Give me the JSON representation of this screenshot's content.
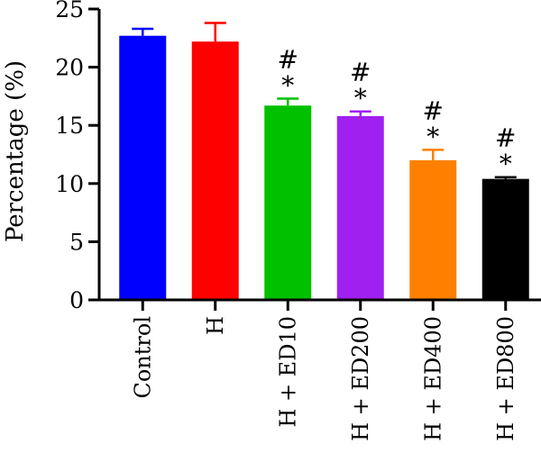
{
  "chart_data": {
    "type": "bar",
    "categories": [
      "Control",
      "H",
      "H + ED10",
      "H + ED200",
      "H + ED400",
      "H + ED800"
    ],
    "values": [
      22.7,
      22.2,
      16.7,
      15.8,
      12.0,
      10.4
    ],
    "errors": [
      0.6,
      1.6,
      0.6,
      0.4,
      0.9,
      0.15
    ],
    "colors": [
      "#0000ff",
      "#ff0000",
      "#00c000",
      "#a020f0",
      "#ff8000",
      "#000000"
    ],
    "significance": [
      {
        "hash": "",
        "star": ""
      },
      {
        "hash": "",
        "star": ""
      },
      {
        "hash": "#",
        "star": "*"
      },
      {
        "hash": "#",
        "star": "*"
      },
      {
        "hash": "#",
        "star": "*"
      },
      {
        "hash": "#",
        "star": "*"
      }
    ],
    "ylabel": "Percentage (%)",
    "ylim": [
      0,
      25
    ],
    "yticks": [
      "0",
      "5",
      "10",
      "15",
      "20",
      "25"
    ],
    "grid": false,
    "legend": "none"
  }
}
